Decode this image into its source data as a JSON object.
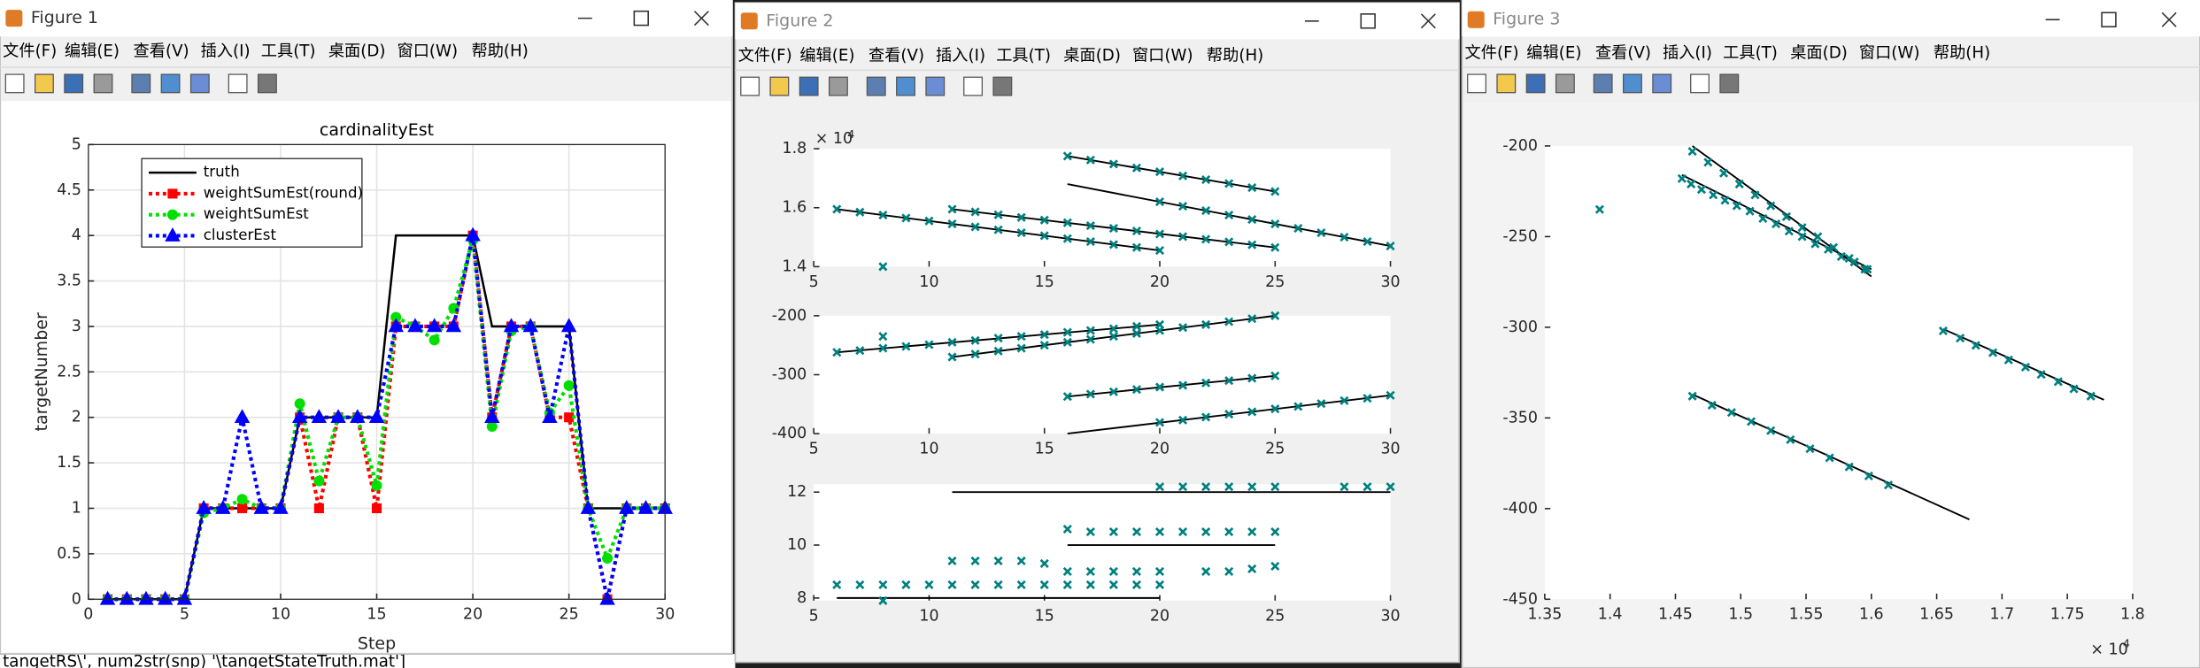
{
  "windows": [
    {
      "title": "Figure 1"
    },
    {
      "title": "Figure 2"
    },
    {
      "title": "Figure 3"
    }
  ],
  "menu": [
    "文件(F)",
    "编辑(E)",
    "查看(V)",
    "插入(I)",
    "工具(T)",
    "桌面(D)",
    "窗口(W)",
    "帮助(H)"
  ],
  "command_line": "tangetRS\\', num2str(snp) '\\tangetStateTruth.mat']",
  "chart_data": [
    {
      "type": "line",
      "title": "cardinalityEst",
      "xlabel": "Step",
      "ylabel": "targetNumber",
      "x": [
        1,
        2,
        3,
        4,
        5,
        6,
        7,
        8,
        9,
        10,
        11,
        12,
        13,
        14,
        15,
        16,
        17,
        18,
        19,
        20,
        21,
        22,
        23,
        24,
        25,
        26,
        27,
        28,
        29,
        30
      ],
      "xlim": [
        0,
        30
      ],
      "xticks": [
        0,
        5,
        10,
        15,
        20,
        25,
        30
      ],
      "ylim": [
        0,
        5
      ],
      "yticks": [
        0,
        0.5,
        1,
        1.5,
        2,
        2.5,
        3,
        3.5,
        4,
        4.5,
        5
      ],
      "grid": true,
      "box": true,
      "legend": "upper left",
      "series": [
        {
          "name": "truth",
          "color": "#000000",
          "linestyle": "solid",
          "marker": "none",
          "values": [
            0,
            0,
            0,
            0,
            0,
            1,
            1,
            1,
            1,
            1,
            2,
            2,
            2,
            2,
            2,
            4,
            4,
            4,
            4,
            4,
            3,
            3,
            3,
            3,
            3,
            1,
            1,
            1,
            1,
            1
          ]
        },
        {
          "name": "weightSumEst(round)",
          "color": "#ff0000",
          "linestyle": "dotted",
          "marker": "square",
          "values": [
            0,
            0,
            0,
            0,
            0,
            1,
            1,
            1,
            1,
            1,
            2,
            1,
            2,
            2,
            1,
            3,
            3,
            3,
            3,
            4,
            2,
            3,
            3,
            2,
            2,
            1,
            0,
            1,
            1,
            1
          ]
        },
        {
          "name": "weightSumEst",
          "color": "#00e000",
          "linestyle": "dotted",
          "marker": "circle",
          "values": [
            0,
            0,
            0,
            0,
            0,
            0.95,
            1,
            1.1,
            1,
            1,
            2.15,
            1.3,
            2,
            2,
            1.25,
            3.1,
            3,
            2.85,
            3.2,
            3.95,
            1.9,
            2.95,
            3,
            2.05,
            2.35,
            1,
            0.45,
            1,
            1,
            1
          ]
        },
        {
          "name": "clusterEst",
          "color": "#0000ff",
          "linestyle": "dotted",
          "marker": "triangle",
          "values": [
            0,
            0,
            0,
            0,
            0,
            1,
            1,
            2,
            1,
            1,
            2,
            2,
            2,
            2,
            2,
            3,
            3,
            3,
            3,
            4,
            2,
            3,
            3,
            2,
            3,
            1,
            0,
            1,
            1,
            1
          ]
        }
      ]
    },
    {
      "type": "scatter",
      "xlim": [
        5,
        30
      ],
      "xticks": [
        5,
        10,
        15,
        20,
        25,
        30
      ],
      "ylim": [
        14000,
        18000
      ],
      "yticks": [
        {
          "value": 14000,
          "label": "1.4"
        },
        {
          "value": 16000,
          "label": "1.6"
        },
        {
          "value": 18000,
          "label": "1.8"
        }
      ],
      "y_multiplier": {
        "base": "× 10",
        "power": "4"
      },
      "grid": false,
      "box": false,
      "line_color": "#000000",
      "lines": [
        {
          "x": [
            6,
            20
          ],
          "y": [
            15950,
            14550
          ]
        },
        {
          "x": [
            11,
            25
          ],
          "y": [
            15950,
            14650
          ]
        },
        {
          "x": [
            16,
            25
          ],
          "y": [
            17750,
            16550
          ]
        },
        {
          "x": [
            16,
            30
          ],
          "y": [
            16800,
            14700
          ]
        }
      ],
      "points": {
        "color": "#008080",
        "x": [
          6,
          7,
          8,
          9,
          10,
          11,
          12,
          13,
          14,
          15,
          16,
          17,
          18,
          19,
          20,
          11,
          12,
          13,
          14,
          15,
          16,
          17,
          18,
          19,
          20,
          21,
          22,
          23,
          24,
          25,
          16,
          17,
          18,
          19,
          20,
          21,
          22,
          23,
          24,
          25,
          20,
          21,
          22,
          23,
          24,
          25,
          26,
          27,
          28,
          29,
          30,
          8
        ],
        "y": [
          15950,
          15850,
          15750,
          15650,
          15550,
          15450,
          15350,
          15250,
          15150,
          15050,
          14950,
          14850,
          14750,
          14650,
          14550,
          15950,
          15860,
          15760,
          15670,
          15580,
          15490,
          15390,
          15300,
          15210,
          15110,
          15020,
          14930,
          14840,
          14740,
          14650,
          17750,
          17620,
          17480,
          17350,
          17220,
          17080,
          16950,
          16820,
          16680,
          16550,
          16200,
          16050,
          15900,
          15750,
          15600,
          15450,
          15300,
          15150,
          15000,
          14850,
          14700,
          14000
        ]
      }
    },
    {
      "type": "scatter",
      "xlim": [
        5,
        30
      ],
      "xticks": [
        5,
        10,
        15,
        20,
        25,
        30
      ],
      "ylim": [
        -400,
        -200
      ],
      "yticks": [
        -400,
        -300,
        -200
      ],
      "grid": false,
      "box": false,
      "line_color": "#000000",
      "lines": [
        {
          "x": [
            6,
            20
          ],
          "y": [
            -262,
            -215
          ]
        },
        {
          "x": [
            11,
            25
          ],
          "y": [
            -270,
            -200
          ]
        },
        {
          "x": [
            16,
            25
          ],
          "y": [
            -337,
            -302
          ]
        },
        {
          "x": [
            16,
            30
          ],
          "y": [
            -400,
            -335
          ]
        }
      ],
      "points": {
        "color": "#008080",
        "x": [
          6,
          7,
          8,
          9,
          10,
          11,
          12,
          13,
          14,
          15,
          16,
          17,
          18,
          19,
          20,
          11,
          12,
          13,
          14,
          15,
          16,
          17,
          18,
          19,
          20,
          21,
          22,
          23,
          24,
          25,
          16,
          17,
          18,
          19,
          20,
          21,
          22,
          23,
          24,
          25,
          20,
          21,
          22,
          23,
          24,
          25,
          26,
          27,
          28,
          29,
          30,
          8
        ],
        "y": [
          -262,
          -259,
          -255,
          -252,
          -249,
          -245,
          -242,
          -238,
          -235,
          -232,
          -228,
          -225,
          -222,
          -218,
          -215,
          -270,
          -265,
          -260,
          -255,
          -250,
          -245,
          -240,
          -235,
          -230,
          -225,
          -220,
          -215,
          -210,
          -205,
          -200,
          -337,
          -333,
          -329,
          -325,
          -321,
          -318,
          -314,
          -310,
          -306,
          -302,
          -381,
          -377,
          -372,
          -367,
          -363,
          -358,
          -354,
          -349,
          -344,
          -340,
          -335,
          -235
        ]
      }
    },
    {
      "type": "scatter",
      "xlim": [
        5,
        30
      ],
      "xticks": [
        5,
        10,
        15,
        20,
        25,
        30
      ],
      "ylim": [
        7.9,
        12.3
      ],
      "yticks": [
        8,
        10,
        12
      ],
      "grid": false,
      "box": false,
      "line_color": "#000000",
      "lines": [
        {
          "x": [
            6,
            20
          ],
          "y": [
            8,
            8
          ]
        },
        {
          "x": [
            11,
            30
          ],
          "y": [
            12,
            12
          ]
        },
        {
          "x": [
            16,
            25
          ],
          "y": [
            10,
            10
          ]
        }
      ],
      "points": {
        "color": "#008080",
        "x": [
          6,
          7,
          8,
          9,
          10,
          11,
          12,
          13,
          14,
          15,
          16,
          17,
          18,
          19,
          20,
          8,
          11,
          12,
          13,
          14,
          15,
          16,
          17,
          18,
          19,
          20,
          16,
          17,
          18,
          19,
          20,
          21,
          22,
          23,
          24,
          25,
          20,
          21,
          22,
          23,
          24,
          25,
          28,
          29,
          30,
          22,
          23,
          24,
          25
        ],
        "y": [
          8.5,
          8.5,
          8.5,
          8.5,
          8.5,
          8.5,
          8.5,
          8.5,
          8.5,
          8.5,
          8.5,
          8.5,
          8.5,
          8.5,
          8.5,
          7.9,
          9.4,
          9.4,
          9.4,
          9.4,
          9.3,
          9,
          9,
          9,
          9,
          9,
          10.6,
          10.5,
          10.5,
          10.5,
          10.5,
          10.5,
          10.5,
          10.5,
          10.5,
          10.5,
          12.2,
          12.2,
          12.2,
          12.2,
          12.2,
          12.2,
          12.2,
          12.2,
          12.2,
          9,
          9,
          9.1,
          9.2
        ]
      }
    },
    {
      "type": "scatter",
      "xlim": [
        13500,
        18000
      ],
      "xticks": [
        {
          "value": 13500,
          "label": "1.35"
        },
        {
          "value": 14000,
          "label": "1.4"
        },
        {
          "value": 14500,
          "label": "1.45"
        },
        {
          "value": 15000,
          "label": "1.5"
        },
        {
          "value": 15500,
          "label": "1.55"
        },
        {
          "value": 16000,
          "label": "1.6"
        },
        {
          "value": 16500,
          "label": "1.65"
        },
        {
          "value": 17000,
          "label": "1.7"
        },
        {
          "value": 17500,
          "label": "1.75"
        },
        {
          "value": 18000,
          "label": "1.8"
        }
      ],
      "x_multiplier": {
        "base": "× 10",
        "power": "4"
      },
      "ylim": [
        -450,
        -200
      ],
      "yticks": [
        -450,
        -400,
        -350,
        -300,
        -250,
        -200
      ],
      "grid": false,
      "box": false,
      "line_color": "#000000",
      "lines": [
        {
          "x": [
            14630,
            16000
          ],
          "y": [
            -200,
            -272
          ]
        },
        {
          "x": [
            14550,
            16000
          ],
          "y": [
            -216,
            -268
          ]
        },
        {
          "x": [
            16550,
            17780
          ],
          "y": [
            -301,
            -340
          ]
        },
        {
          "x": [
            14630,
            16750
          ],
          "y": [
            -337,
            -406
          ]
        }
      ],
      "points": {
        "color": "#008080",
        "x": [
          14630,
          14750,
          14870,
          14990,
          15110,
          15230,
          15350,
          15470,
          15590,
          15710,
          15830,
          15950,
          14550,
          14620,
          14700,
          14790,
          14880,
          14970,
          15070,
          15170,
          15270,
          15370,
          15470,
          15570,
          15670,
          15770,
          15870,
          15970,
          16550,
          16680,
          16800,
          16930,
          17050,
          17180,
          17300,
          17430,
          17550,
          17680,
          14630,
          14780,
          14930,
          15080,
          15230,
          15380,
          15530,
          15680,
          15830,
          15980,
          16130,
          13920
        ],
        "y": [
          -203,
          -209,
          -215,
          -221,
          -227,
          -233,
          -239,
          -245,
          -250,
          -256,
          -262,
          -268,
          -218,
          -221,
          -224,
          -227,
          -230,
          -233,
          -236,
          -240,
          -243,
          -247,
          -250,
          -254,
          -257,
          -261,
          -264,
          -268,
          -302,
          -306,
          -310,
          -314,
          -318,
          -322,
          -326,
          -330,
          -334,
          -338,
          -338,
          -343,
          -347,
          -352,
          -357,
          -362,
          -367,
          -372,
          -377,
          -382,
          -387,
          -235
        ]
      }
    }
  ]
}
